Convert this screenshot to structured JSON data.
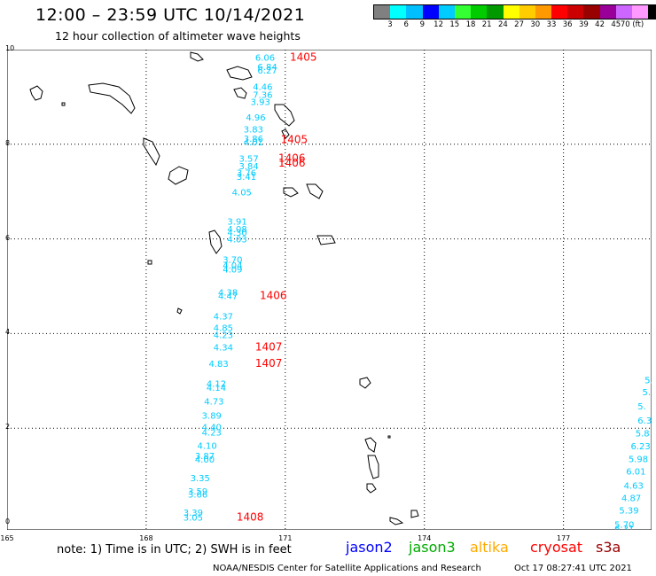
{
  "header": {
    "title": "12:00 – 23:59 UTC 10/14/2021",
    "subtitle": "12 hour collection of altimeter wave heights"
  },
  "colorbar": {
    "colors": [
      "#808080",
      "#00ffff",
      "#00bfff",
      "#0000ff",
      "#00ccff",
      "#33ff33",
      "#00cc00",
      "#009900",
      "#ffff00",
      "#ffcc00",
      "#ff9900",
      "#ff0000",
      "#cc0000",
      "#990000",
      "#990099",
      "#cc66ff",
      "#ff99ff",
      "#000000"
    ],
    "labels": [
      "3",
      "6",
      "9",
      "12",
      "15",
      "18",
      "21",
      "24",
      "27",
      "30",
      "33",
      "36",
      "39",
      "42",
      "45",
      "70 (ft)"
    ]
  },
  "axes": {
    "x_ticks": [
      "165",
      "168",
      "171",
      "174",
      "177"
    ],
    "y_ticks": [
      "10",
      "8",
      "6",
      "4",
      "2",
      "0"
    ],
    "x_range": [
      165,
      178.9
    ],
    "y_range": [
      0,
      10
    ]
  },
  "heights": [
    {
      "lon": 170.35,
      "lat": 9.77,
      "text": "6.06"
    },
    {
      "lon": 170.4,
      "lat": 9.57,
      "text": "6.84"
    },
    {
      "lon": 170.4,
      "lat": 9.49,
      "text": "6.27"
    },
    {
      "lon": 170.3,
      "lat": 9.15,
      "text": "4.46"
    },
    {
      "lon": 170.3,
      "lat": 8.98,
      "text": "7.36"
    },
    {
      "lon": 170.25,
      "lat": 8.83,
      "text": "3.93"
    },
    {
      "lon": 170.15,
      "lat": 8.5,
      "text": "4.96"
    },
    {
      "lon": 170.1,
      "lat": 8.25,
      "text": "3.83"
    },
    {
      "lon": 170.1,
      "lat": 8.05,
      "text": "3.86"
    },
    {
      "lon": 170.1,
      "lat": 7.98,
      "text": "4.01"
    },
    {
      "lon": 170.0,
      "lat": 7.63,
      "text": "3.57"
    },
    {
      "lon": 170.0,
      "lat": 7.47,
      "text": "3.84"
    },
    {
      "lon": 169.95,
      "lat": 7.33,
      "text": "3.76"
    },
    {
      "lon": 169.95,
      "lat": 7.25,
      "text": "3.41"
    },
    {
      "lon": 169.85,
      "lat": 6.92,
      "text": "4.05"
    },
    {
      "lon": 169.75,
      "lat": 6.3,
      "text": "3.91"
    },
    {
      "lon": 169.75,
      "lat": 6.14,
      "text": "4.08"
    },
    {
      "lon": 169.75,
      "lat": 6.07,
      "text": "4.30"
    },
    {
      "lon": 169.75,
      "lat": 5.93,
      "text": "4.03"
    },
    {
      "lon": 169.65,
      "lat": 5.5,
      "text": "3.70"
    },
    {
      "lon": 169.65,
      "lat": 5.37,
      "text": "4.04"
    },
    {
      "lon": 169.65,
      "lat": 5.29,
      "text": "4.09"
    },
    {
      "lon": 169.55,
      "lat": 4.8,
      "text": "4.38"
    },
    {
      "lon": 169.55,
      "lat": 4.73,
      "text": "4.47"
    },
    {
      "lon": 169.45,
      "lat": 4.3,
      "text": "4.37"
    },
    {
      "lon": 169.45,
      "lat": 4.05,
      "text": "4.85"
    },
    {
      "lon": 169.45,
      "lat": 3.9,
      "text": "4.23"
    },
    {
      "lon": 169.45,
      "lat": 3.64,
      "text": "4.34"
    },
    {
      "lon": 169.35,
      "lat": 3.3,
      "text": "4.83"
    },
    {
      "lon": 169.3,
      "lat": 2.87,
      "text": "4.12"
    },
    {
      "lon": 169.3,
      "lat": 2.79,
      "text": "4.14"
    },
    {
      "lon": 169.25,
      "lat": 2.5,
      "text": "4.73"
    },
    {
      "lon": 169.2,
      "lat": 2.2,
      "text": "3.89"
    },
    {
      "lon": 169.2,
      "lat": 1.96,
      "text": "4.40"
    },
    {
      "lon": 169.2,
      "lat": 1.84,
      "text": "4.23"
    },
    {
      "lon": 169.1,
      "lat": 1.56,
      "text": "4.10"
    },
    {
      "lon": 169.05,
      "lat": 1.35,
      "text": "3.87"
    },
    {
      "lon": 169.05,
      "lat": 1.27,
      "text": "4.00"
    },
    {
      "lon": 168.95,
      "lat": 0.88,
      "text": "3.35"
    },
    {
      "lon": 168.9,
      "lat": 0.6,
      "text": "3.59"
    },
    {
      "lon": 168.9,
      "lat": 0.53,
      "text": "3.66"
    },
    {
      "lon": 168.8,
      "lat": 0.15,
      "text": "3.39"
    },
    {
      "lon": 168.8,
      "lat": 0.05,
      "text": "3.05"
    },
    {
      "lon": 168.7,
      "lat": -0.3,
      "text": "3.61"
    },
    {
      "lon": 178.75,
      "lat": 2.95,
      "text": "5."
    },
    {
      "lon": 178.7,
      "lat": 2.7,
      "text": "5."
    },
    {
      "lon": 178.6,
      "lat": 2.4,
      "text": "5."
    },
    {
      "lon": 178.6,
      "lat": 2.1,
      "text": "6.3"
    },
    {
      "lon": 178.55,
      "lat": 1.83,
      "text": "5.8"
    },
    {
      "lon": 178.45,
      "lat": 1.55,
      "text": "6.23"
    },
    {
      "lon": 178.4,
      "lat": 1.28,
      "text": "5.98"
    },
    {
      "lon": 178.35,
      "lat": 1.02,
      "text": "6.01"
    },
    {
      "lon": 178.3,
      "lat": 0.72,
      "text": "4.63"
    },
    {
      "lon": 178.25,
      "lat": 0.46,
      "text": "4.87"
    },
    {
      "lon": 178.2,
      "lat": 0.2,
      "text": "5.39"
    },
    {
      "lon": 178.1,
      "lat": -0.1,
      "text": "5.70"
    },
    {
      "lon": 178.1,
      "lat": -0.19,
      "text": "6.31"
    }
  ],
  "times": [
    {
      "lon": 171.1,
      "lat": 9.77,
      "text": "1405"
    },
    {
      "lon": 170.9,
      "lat": 8.02,
      "text": "1405"
    },
    {
      "lon": 170.85,
      "lat": 7.63,
      "text": "1406"
    },
    {
      "lon": 170.85,
      "lat": 7.53,
      "text": "1406"
    },
    {
      "lon": 170.45,
      "lat": 4.73,
      "text": "1406"
    },
    {
      "lon": 170.35,
      "lat": 3.64,
      "text": "1407"
    },
    {
      "lon": 170.35,
      "lat": 3.3,
      "text": "1407"
    },
    {
      "lon": 169.95,
      "lat": 0.05,
      "text": "1408"
    }
  ],
  "footer": {
    "note": "note:  1) Time is in UTC;  2) SWH is in feet",
    "satellites": [
      {
        "name": "jason2",
        "color": "#0000ff"
      },
      {
        "name": "jason3",
        "color": "#00aa00"
      },
      {
        "name": "altika",
        "color": "#ffaa00"
      },
      {
        "name": "cryosat",
        "color": "#ff0000"
      },
      {
        "name": "s3a",
        "color": "#990000"
      }
    ],
    "credit": "NOAA/NESDIS Center for Satellite Applications and Research",
    "timestamp": "Oct 17 08:27:41 UTC 2021"
  },
  "colors": {
    "height_text": "#00ccff",
    "time_text": "#ff0000"
  }
}
